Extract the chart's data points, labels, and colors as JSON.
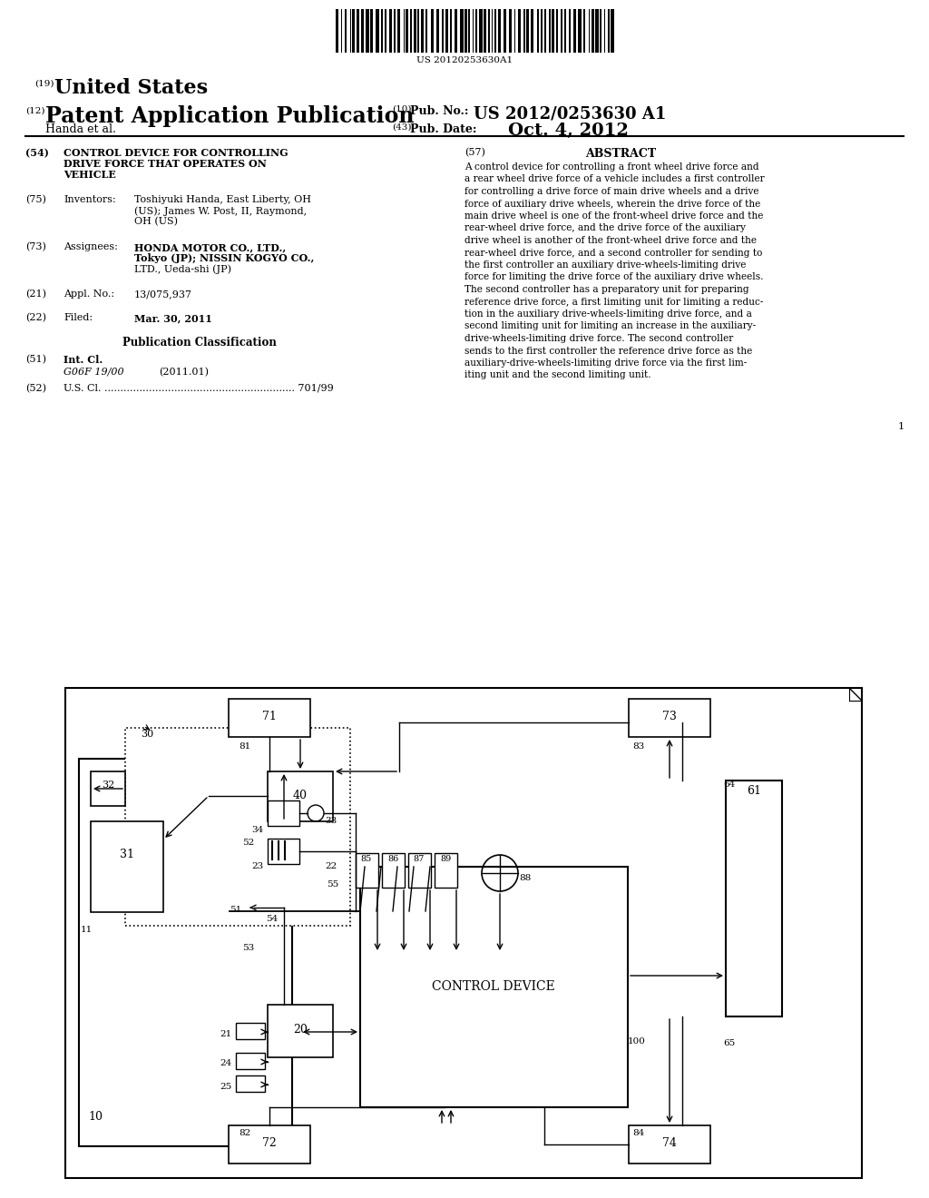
{
  "bg_color": "#ffffff",
  "barcode_text": "US 20120253630A1",
  "header": {
    "number_19": "(19)",
    "united_states": "United States",
    "number_12": "(12)",
    "patent_app": "Patent Application Publication",
    "number_10": "(10)",
    "pub_no_label": "Pub. No.:",
    "pub_no": "US 2012/0253630 A1",
    "inventors_line": "Handa et al.",
    "number_43": "(43)",
    "pub_date_label": "Pub. Date:",
    "pub_date": "Oct. 4, 2012"
  },
  "left_col": {
    "n54": "(54)",
    "title_line1": "CONTROL DEVICE FOR CONTROLLING",
    "title_line2": "DRIVE FORCE THAT OPERATES ON",
    "title_line3": "VEHICLE",
    "n75": "(75)",
    "inventors_label": "Inventors:",
    "inventors_line1": "Toshiyuki Handa, East Liberty, OH",
    "inventors_line2": "(US); James W. Post, II, Raymond,",
    "inventors_line3": "OH (US)",
    "n73": "(73)",
    "assignees_label": "Assignees:",
    "assignees_line1": "HONDA MOTOR CO., LTD.,",
    "assignees_line2": "Tokyo (JP); NISSIN KOGYO CO.,",
    "assignees_line3": "LTD., Ueda-shi (JP)",
    "n21": "(21)",
    "appl_label": "Appl. No.:",
    "appl_val": "13/075,937",
    "n22": "(22)",
    "filed_label": "Filed:",
    "filed_val": "Mar. 30, 2011",
    "pub_class": "Publication Classification",
    "n51": "(51)",
    "int_cl_label": "Int. Cl.",
    "int_cl_val": "G06F 19/00",
    "int_cl_year": "(2011.01)",
    "n52": "(52)",
    "us_cl_label": "U.S. Cl. ............................................................",
    "us_cl_val": "701/99"
  },
  "right_col": {
    "n57": "(57)",
    "abstract_title": "ABSTRACT",
    "abstract_lines": [
      "A control device for controlling a front wheel drive force and",
      "a rear wheel drive force of a vehicle includes a first controller",
      "for controlling a drive force of main drive wheels and a drive",
      "force of auxiliary drive wheels, wherein the drive force of the",
      "main drive wheel is one of the front-wheel drive force and the",
      "rear-wheel drive force, and the drive force of the auxiliary",
      "drive wheel is another of the front-wheel drive force and the",
      "rear-wheel drive force, and a second controller for sending to",
      "the first controller an auxiliary drive-wheels-limiting drive",
      "force for limiting the drive force of the auxiliary drive wheels.",
      "The second controller has a preparatory unit for preparing",
      "reference drive force, a first limiting unit for limiting a reduc-",
      "tion in the auxiliary drive-wheels-limiting drive force, and a",
      "second limiting unit for limiting an increase in the auxiliary-",
      "drive-wheels-limiting drive force. The second controller",
      "sends to the first controller the reference drive force as the",
      "auxiliary-drive-wheels-limiting drive force via the first lim-",
      "iting unit and the second limiting unit."
    ]
  }
}
